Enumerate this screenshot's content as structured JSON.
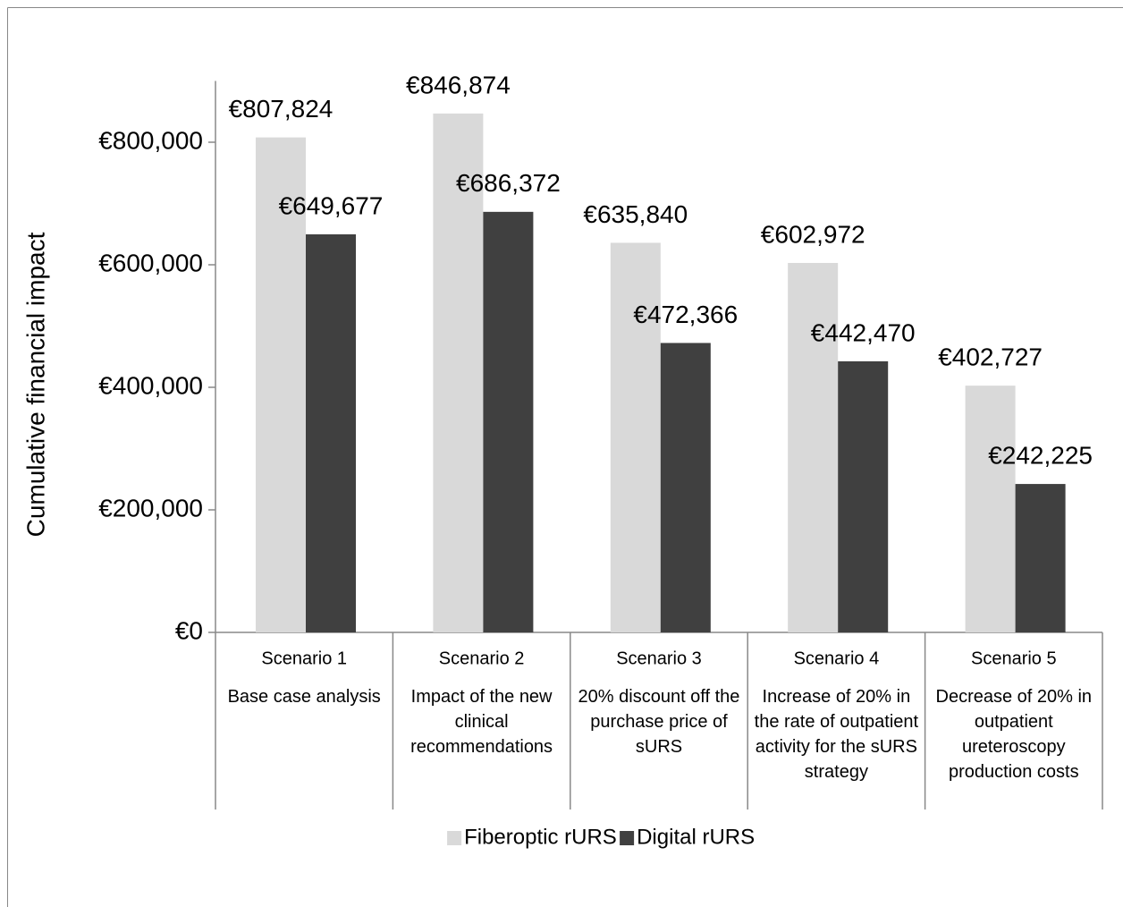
{
  "chart_data": {
    "type": "bar",
    "y_label": "Cumulative financial impact",
    "categories": [
      "Scenario 1",
      "Scenario 2",
      "Scenario 3",
      "Scenario 4",
      "Scenario 5"
    ],
    "category_descriptions": [
      "Base case analysis",
      "Impact of the new clinical recommendations",
      "20% discount off the purchase price of sURS",
      "Increase of 20% in the rate of outpatient activity for the sURS strategy",
      "Decrease of 20% in outpatient ureteroscopy production costs"
    ],
    "series": [
      {
        "name": "Fiberoptic rURS",
        "color": "#d9d9d9",
        "values": [
          807824,
          846874,
          635840,
          602972,
          402727
        ],
        "value_labels": [
          "€807,824",
          "€846,874",
          "€635,840",
          "€602,972",
          "€402,727"
        ]
      },
      {
        "name": "Digital rURS",
        "color": "#404040",
        "values": [
          649677,
          686372,
          472366,
          442470,
          242225
        ],
        "value_labels": [
          "€649,677",
          "€686,372",
          "€472,366",
          "€442,470",
          "€242,225"
        ]
      }
    ],
    "ylim": [
      0,
      900000
    ],
    "yticks": [
      {
        "value": 0,
        "label": "€0"
      },
      {
        "value": 200000,
        "label": "€200,000"
      },
      {
        "value": 400000,
        "label": "€400,000"
      },
      {
        "value": 600000,
        "label": "€600,000"
      },
      {
        "value": 800000,
        "label": "€800,000"
      }
    ],
    "legend": "bottom"
  }
}
